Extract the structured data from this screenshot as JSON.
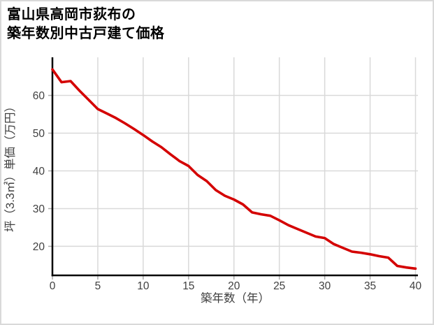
{
  "header": {
    "title_line1": "富山県高岡市荻布の",
    "title_line2": "築年数別中古戸建て価格"
  },
  "chart_data": {
    "type": "line",
    "title_lines": [
      "富山県高岡市荻布の",
      "築年数別中古戸建て価格"
    ],
    "xlabel": "築年数（年）",
    "ylabel": "坪（3.3㎡）単価（万円）",
    "x": [
      0,
      1,
      2,
      3,
      4,
      5,
      6,
      7,
      8,
      9,
      10,
      11,
      12,
      13,
      14,
      15,
      16,
      17,
      18,
      19,
      20,
      21,
      22,
      23,
      24,
      25,
      26,
      27,
      28,
      29,
      30,
      31,
      32,
      33,
      34,
      35,
      36,
      37,
      38,
      39,
      40
    ],
    "values": [
      66.9,
      63.5,
      63.8,
      61.2,
      58.8,
      56.4,
      55.2,
      54.0,
      52.6,
      51.1,
      49.5,
      47.8,
      46.3,
      44.4,
      42.6,
      41.3,
      38.9,
      37.3,
      34.9,
      33.4,
      32.4,
      31.1,
      29.0,
      28.5,
      28.1,
      26.9,
      25.6,
      24.6,
      23.6,
      22.6,
      22.2,
      20.6,
      19.6,
      18.6,
      18.3,
      17.9,
      17.4,
      17.0,
      14.8,
      14.4,
      14.1
    ],
    "x_ticks": [
      0,
      5,
      10,
      15,
      20,
      25,
      30,
      35,
      40
    ],
    "y_ticks": [
      20,
      30,
      40,
      50,
      60
    ],
    "xlim": [
      0,
      40
    ],
    "ylim": [
      12.3,
      70.1
    ],
    "grid": true,
    "legend": false,
    "line_color": "#d40000",
    "colors": {
      "grid": "#d9d9d9",
      "tick": "#ababab",
      "axis": "#000000",
      "label": "#404040",
      "title": "#000000",
      "page_border": "#d9d9d9"
    }
  }
}
